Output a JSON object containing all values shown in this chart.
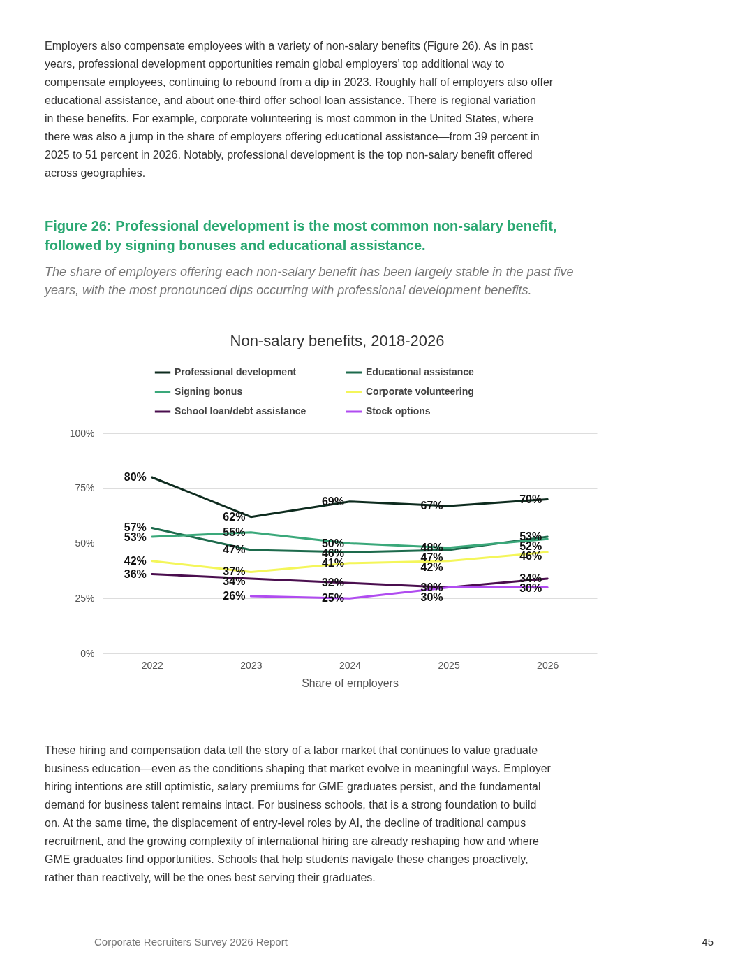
{
  "chart_data": {
    "type": "line",
    "title": "Non-salary benefits, 2018-2026",
    "xlabel": "Share of employers",
    "categories": [
      "2022",
      "2023",
      "2024",
      "2025",
      "2026"
    ],
    "series": [
      {
        "name": "Professional development",
        "color": "#0d2b1e",
        "values": [
          80,
          62,
          69,
          67,
          70
        ],
        "value_labels": [
          "80%",
          "62%",
          "69%",
          "67%",
          "70%"
        ]
      },
      {
        "name": "Educational assistance",
        "color": "#1d6a4c",
        "values": [
          57,
          47,
          46,
          47,
          53
        ],
        "value_labels": [
          "57%",
          "47%",
          "46%",
          "47%",
          "53%"
        ]
      },
      {
        "name": "Signing bonus",
        "color": "#3aa87a",
        "values": [
          53,
          55,
          50,
          48,
          52
        ],
        "value_labels": [
          "53%",
          "55%",
          "50%",
          "48%",
          "52%"
        ]
      },
      {
        "name": "Corporate volunteering",
        "color": "#f4f65a",
        "values": [
          42,
          37,
          41,
          42,
          46
        ],
        "value_labels": [
          "42%",
          "37%",
          "41%",
          "42%",
          "46%"
        ]
      },
      {
        "name": "School loan/debt assistance",
        "color": "#4a0e4e",
        "values": [
          36,
          34,
          32,
          30,
          34
        ],
        "value_labels": [
          "36%",
          "34%",
          "32%",
          "30%",
          "34%"
        ]
      },
      {
        "name": "Stock options",
        "color": "#b04cf0",
        "values": [
          null,
          26,
          25,
          30,
          30
        ],
        "value_labels": [
          null,
          "26%",
          "25%",
          "30%",
          "30%"
        ]
      }
    ],
    "ylim": [
      0,
      100
    ],
    "yticks": [
      {
        "value": 0,
        "label": "0%"
      },
      {
        "value": 25,
        "label": "25%"
      },
      {
        "value": 50,
        "label": "50%"
      },
      {
        "value": 75,
        "label": "75%"
      },
      {
        "value": 100,
        "label": "100%"
      }
    ],
    "grid": "y",
    "legend": "top",
    "marker": "none",
    "line_style": "solid",
    "annotations": [
      "Employers also compensate employees with a variety of non-salary benefits (Figure 26). As in past years, professional development opportunities remain global employers’ top additional way to compensate employees, continuing to rebound from a dip in 2023. Roughly half of employers also offer educational assistance, and about one-third offer school loan assistance. There is regional variation in these benefits. For example, corporate volunteering is most common in the United States, where there was also a jump in the share of employers offering educational assistance—from 39 percent in 2025 to 51 percent in 2026. Notably, professional development is the top non-salary benefit offered across geographies.",
      "Figure 26: Professional development is the most common non-salary benefit, followed by signing bonuses and educational assistance.",
      "The share of employers offering each non-salary benefit has been largely stable in the past five years, with the most pronounced dips occurring with professional development benefits.",
      "These hiring and compensation data tell the story of a labor market that continues to value graduate business education—even as the conditions shaping that market evolve in meaningful ways. Employer hiring intentions are still optimistic, salary premiums for GME graduates persist, and the fundamental demand for business talent remains intact. For business schools, that is a strong foundation to build on. At the same time, the displacement of entry-level roles by AI, the decline of traditional campus recruitment, and the growing complexity of international hiring are already reshaping how and where GME graduates find opportunities. Schools that help students navigate these changes proactively, rather than reactively, will be the ones best serving their graduates.",
      "Corporate Recruiters Survey 2026 Report",
      "45"
    ]
  }
}
